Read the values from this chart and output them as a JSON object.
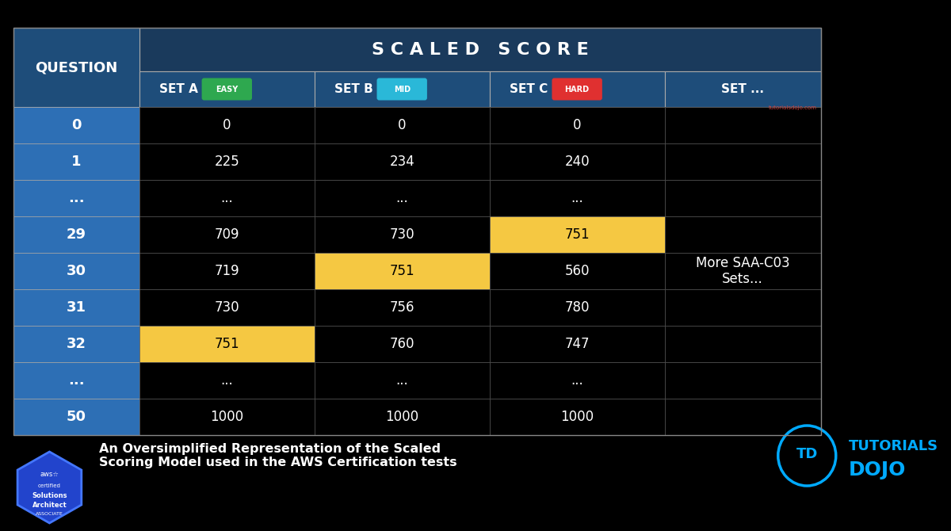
{
  "bg_color": "#000000",
  "table_bg": "#000000",
  "header_row1_bg": "#1a3a5c",
  "header_row2_bg": "#1e4d7a",
  "question_col_bg": "#2d6fb5",
  "data_bg": "#000000",
  "border_color": "#555555",
  "text_color_white": "#ffffff",
  "text_color_yellow": "#f5c842",
  "highlight_yellow": "#f5c842",
  "scaled_score_title": "S C A L E D   S C O R E",
  "question_label": "QUESTION",
  "col_headers": [
    "SET A",
    "SET B",
    "SET C",
    "SET ..."
  ],
  "col_badges": [
    "EASY",
    "MID",
    "HARD",
    ""
  ],
  "col_badge_colors": [
    "#2ea84f",
    "#2ab8d8",
    "#e03030",
    ""
  ],
  "rows": [
    {
      "q": "0",
      "a": "0",
      "b": "0",
      "c": "0",
      "highlight": [
        false,
        false,
        false
      ]
    },
    {
      "q": "1",
      "a": "225",
      "b": "234",
      "c": "240",
      "highlight": [
        false,
        false,
        false
      ]
    },
    {
      "q": "...",
      "a": "...",
      "b": "...",
      "c": "...",
      "highlight": [
        false,
        false,
        false
      ]
    },
    {
      "q": "29",
      "a": "709",
      "b": "730",
      "c": "751",
      "highlight": [
        false,
        false,
        true
      ]
    },
    {
      "q": "30",
      "a": "719",
      "b": "751",
      "c": "560",
      "highlight": [
        false,
        true,
        false
      ]
    },
    {
      "q": "31",
      "a": "730",
      "b": "756",
      "c": "780",
      "highlight": [
        false,
        false,
        false
      ]
    },
    {
      "q": "32",
      "a": "751",
      "b": "760",
      "c": "747",
      "highlight": [
        true,
        false,
        false
      ]
    },
    {
      "q": "...",
      "a": "...",
      "b": "...",
      "c": "...",
      "highlight": [
        false,
        false,
        false
      ]
    },
    {
      "q": "50",
      "a": "1000",
      "b": "1000",
      "c": "1000",
      "highlight": [
        false,
        false,
        false
      ]
    }
  ],
  "more_sets_text": [
    "More SAA-C03",
    "Sets..."
  ],
  "footer_text_line1": "An Oversimplified Representation of the Scaled",
  "footer_text_line2": "Scoring Model used in the AWS Certification tests",
  "tutorials_dojo_text": "TUTORIALS\nDOJO",
  "watermark": "tutorialsdojo.com"
}
